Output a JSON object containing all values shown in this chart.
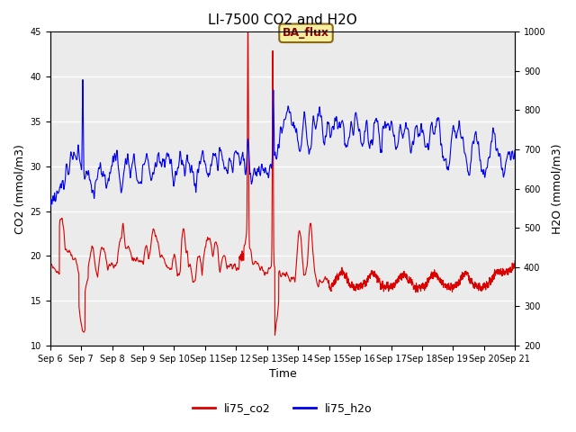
{
  "title": "LI-7500 CO2 and H2O",
  "xlabel": "Time",
  "ylabel_left": "CO2 (mmol/m3)",
  "ylabel_right": "H2O (mmol/m3)",
  "ylim_left": [
    10,
    45
  ],
  "ylim_right": [
    200,
    1000
  ],
  "yticks_left": [
    10,
    15,
    20,
    25,
    30,
    35,
    40,
    45
  ],
  "yticks_right": [
    200,
    300,
    400,
    500,
    600,
    700,
    800,
    900,
    1000
  ],
  "annotation_text": "BA_flux",
  "background_color": "#ebebeb",
  "line_color_co2": "#dd0000",
  "line_color_h2o": "#0000ee",
  "legend_co2": "li75_co2",
  "legend_h2o": "li75_h2o",
  "seed": 12345
}
